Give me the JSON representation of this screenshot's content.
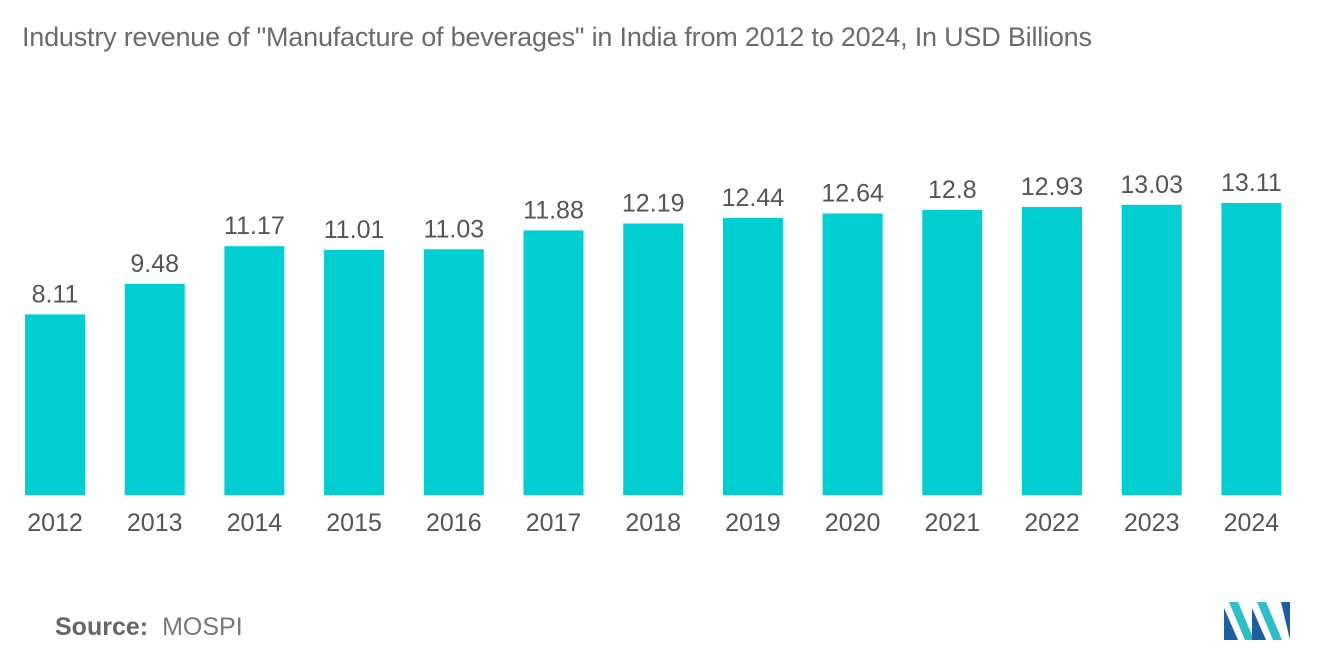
{
  "title": "Industry revenue of \"Manufacture of beverages\" in India from 2012 to 2024, In USD Billions",
  "source_label": "Source:",
  "source_value": "MOSPI",
  "logo_name": "mordor-intelligence-logo",
  "colors": {
    "bar": "#00ced1",
    "text": "#555555",
    "logo_dark": "#1c5fa3",
    "logo_light": "#2bc0c8"
  },
  "chart_data": {
    "type": "bar",
    "title": "Industry revenue of \"Manufacture of beverages\" in India from 2012 to 2024, In USD Billions",
    "categories": [
      "2012",
      "2013",
      "2014",
      "2015",
      "2016",
      "2017",
      "2018",
      "2019",
      "2020",
      "2021",
      "2022",
      "2023",
      "2024"
    ],
    "values": [
      8.11,
      9.48,
      11.17,
      11.01,
      11.03,
      11.88,
      12.19,
      12.44,
      12.64,
      12.8,
      12.93,
      13.03,
      13.11
    ],
    "value_labels": [
      "8.11",
      "9.48",
      "11.17",
      "11.01",
      "11.03",
      "11.88",
      "12.19",
      "12.44",
      "12.64",
      "12.8",
      "12.93",
      "13.03",
      "13.11"
    ],
    "xlabel": "",
    "ylabel": "",
    "ylim": [
      0,
      13.11
    ],
    "grid": false,
    "legend": "none"
  }
}
